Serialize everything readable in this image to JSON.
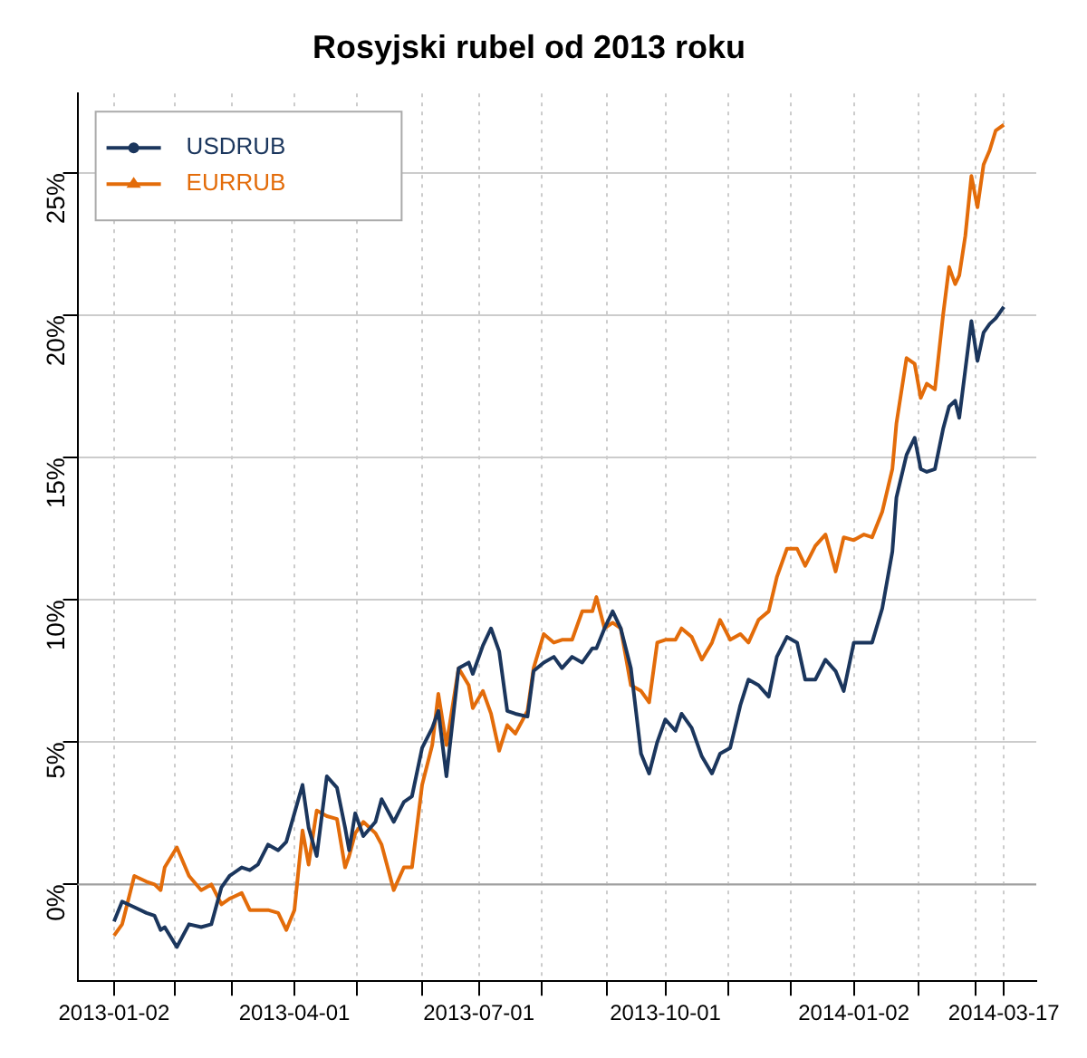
{
  "chart_data": {
    "type": "line",
    "title": "Rosyjski rubel od 2013 roku",
    "x": [
      "2013-01-02",
      "2013-01-06",
      "2013-01-12",
      "2013-01-18",
      "2013-01-22",
      "2013-01-25",
      "2013-01-27",
      "2013-02-02",
      "2013-02-08",
      "2013-02-14",
      "2013-02-19",
      "2013-02-24",
      "2013-02-28",
      "2013-03-06",
      "2013-03-10",
      "2013-03-14",
      "2013-03-19",
      "2013-03-24",
      "2013-03-28",
      "2013-04-01",
      "2013-04-05",
      "2013-04-08",
      "2013-04-12",
      "2013-04-17",
      "2013-04-22",
      "2013-04-26",
      "2013-04-28",
      "2013-05-01",
      "2013-05-05",
      "2013-05-11",
      "2013-05-14",
      "2013-05-20",
      "2013-05-25",
      "2013-05-29",
      "2013-06-03",
      "2013-06-08",
      "2013-06-11",
      "2013-06-15",
      "2013-06-21",
      "2013-06-26",
      "2013-06-28",
      "2013-07-03",
      "2013-07-07",
      "2013-07-11",
      "2013-07-15",
      "2013-07-19",
      "2013-07-25",
      "2013-07-28",
      "2013-08-02",
      "2013-08-07",
      "2013-08-11",
      "2013-08-16",
      "2013-08-21",
      "2013-08-26",
      "2013-08-28",
      "2013-09-01",
      "2013-09-05",
      "2013-09-09",
      "2013-09-14",
      "2013-09-19",
      "2013-09-23",
      "2013-09-27",
      "2013-10-01",
      "2013-10-06",
      "2013-10-09",
      "2013-10-14",
      "2013-10-19",
      "2013-10-24",
      "2013-10-28",
      "2013-11-02",
      "2013-11-07",
      "2013-11-11",
      "2013-11-16",
      "2013-11-21",
      "2013-11-25",
      "2013-11-30",
      "2013-12-05",
      "2013-12-09",
      "2013-12-14",
      "2013-12-19",
      "2013-12-24",
      "2013-12-28",
      "2014-01-02",
      "2014-01-07",
      "2014-01-11",
      "2014-01-16",
      "2014-01-21",
      "2014-01-23",
      "2014-01-28",
      "2014-02-01",
      "2014-02-04",
      "2014-02-07",
      "2014-02-11",
      "2014-02-15",
      "2014-02-18",
      "2014-02-21",
      "2014-02-23",
      "2014-02-26",
      "2014-03-01",
      "2014-03-04",
      "2014-03-07",
      "2014-03-10",
      "2014-03-13",
      "2014-03-17"
    ],
    "series": [
      {
        "name": "USDRUB",
        "color": "#1b365d",
        "values": [
          -1.3,
          -0.6,
          -0.8,
          -1.0,
          -1.1,
          -1.6,
          -1.5,
          -2.2,
          -1.4,
          -1.5,
          -1.4,
          -0.1,
          0.3,
          0.6,
          0.5,
          0.7,
          1.4,
          1.2,
          1.5,
          2.5,
          3.5,
          2.0,
          1.0,
          3.8,
          3.4,
          2.0,
          1.2,
          2.5,
          1.7,
          2.2,
          3.0,
          2.2,
          2.9,
          3.1,
          4.8,
          5.5,
          6.1,
          3.8,
          7.6,
          7.8,
          7.4,
          8.4,
          9.0,
          8.2,
          6.1,
          6.0,
          5.9,
          7.5,
          7.8,
          8.0,
          7.6,
          8.0,
          7.8,
          8.3,
          8.3,
          9.0,
          9.6,
          9.0,
          7.6,
          4.6,
          3.9,
          5.0,
          5.8,
          5.4,
          6.0,
          5.5,
          4.5,
          3.9,
          4.6,
          4.8,
          6.3,
          7.2,
          7.0,
          6.6,
          8.0,
          8.7,
          8.5,
          7.2,
          7.2,
          7.9,
          7.5,
          6.8,
          8.5,
          8.5,
          8.5,
          9.7,
          11.7,
          13.6,
          15.1,
          15.7,
          14.6,
          14.5,
          14.6,
          16.0,
          16.8,
          17.0,
          16.4,
          18.1,
          19.8,
          18.4,
          19.4,
          19.7,
          19.9,
          20.3
        ]
      },
      {
        "name": "EURRUB",
        "color": "#e36c0a",
        "values": [
          -1.8,
          -1.4,
          0.3,
          0.1,
          0.0,
          -0.2,
          0.6,
          1.3,
          0.3,
          -0.2,
          0.0,
          -0.7,
          -0.5,
          -0.3,
          -0.9,
          -0.9,
          -0.9,
          -1.0,
          -1.6,
          -0.9,
          1.9,
          0.7,
          2.6,
          2.4,
          2.3,
          0.6,
          1.0,
          1.8,
          2.2,
          1.8,
          1.4,
          -0.2,
          0.6,
          0.6,
          3.5,
          4.9,
          6.7,
          4.9,
          7.6,
          7.0,
          6.2,
          6.8,
          6.0,
          4.7,
          5.6,
          5.3,
          6.1,
          7.6,
          8.8,
          8.5,
          8.6,
          8.6,
          9.6,
          9.6,
          10.1,
          9.0,
          9.2,
          9.0,
          7.0,
          6.8,
          6.4,
          8.5,
          8.6,
          8.6,
          9.0,
          8.7,
          7.9,
          8.5,
          9.3,
          8.6,
          8.8,
          8.5,
          9.3,
          9.6,
          10.8,
          11.8,
          11.8,
          11.2,
          11.9,
          12.3,
          11.0,
          12.2,
          12.1,
          12.3,
          12.2,
          13.1,
          14.6,
          16.2,
          18.5,
          18.3,
          17.1,
          17.6,
          17.4,
          20.0,
          21.7,
          21.1,
          21.4,
          22.8,
          24.9,
          23.8,
          25.3,
          25.8,
          26.5,
          26.7
        ]
      }
    ],
    "xlim": [
      "2012-12-15",
      "2014-04-02"
    ],
    "xticks": [
      {
        "value": "2013-01-02",
        "label": "2013-01-02"
      },
      {
        "value": "2013-02-01",
        "label": null
      },
      {
        "value": "2013-03-01",
        "label": null
      },
      {
        "value": "2013-04-01",
        "label": "2013-04-01"
      },
      {
        "value": "2013-05-02",
        "label": null
      },
      {
        "value": "2013-06-03",
        "label": null
      },
      {
        "value": "2013-07-01",
        "label": "2013-07-01"
      },
      {
        "value": "2013-08-01",
        "label": null
      },
      {
        "value": "2013-09-02",
        "label": null
      },
      {
        "value": "2013-10-01",
        "label": "2013-10-01"
      },
      {
        "value": "2013-11-01",
        "label": null
      },
      {
        "value": "2013-12-02",
        "label": null
      },
      {
        "value": "2014-01-02",
        "label": "2014-01-02"
      },
      {
        "value": "2014-02-03",
        "label": null
      },
      {
        "value": "2014-03-03",
        "label": null
      },
      {
        "value": "2014-03-17",
        "label": "2014-03-17"
      }
    ],
    "ylim": [
      -3.4,
      27.8
    ],
    "yticks": [
      {
        "value": 0,
        "label": "0%"
      },
      {
        "value": 5,
        "label": "5%"
      },
      {
        "value": 10,
        "label": "10%"
      },
      {
        "value": 15,
        "label": "15%"
      },
      {
        "value": 20,
        "label": "20%"
      },
      {
        "value": 25,
        "label": "25%"
      }
    ],
    "ref_lines": [
      {
        "axis": "y",
        "value": 0,
        "color": "#a0a0a0"
      }
    ],
    "grid": true,
    "legend": "top left",
    "line_style": "solid"
  }
}
